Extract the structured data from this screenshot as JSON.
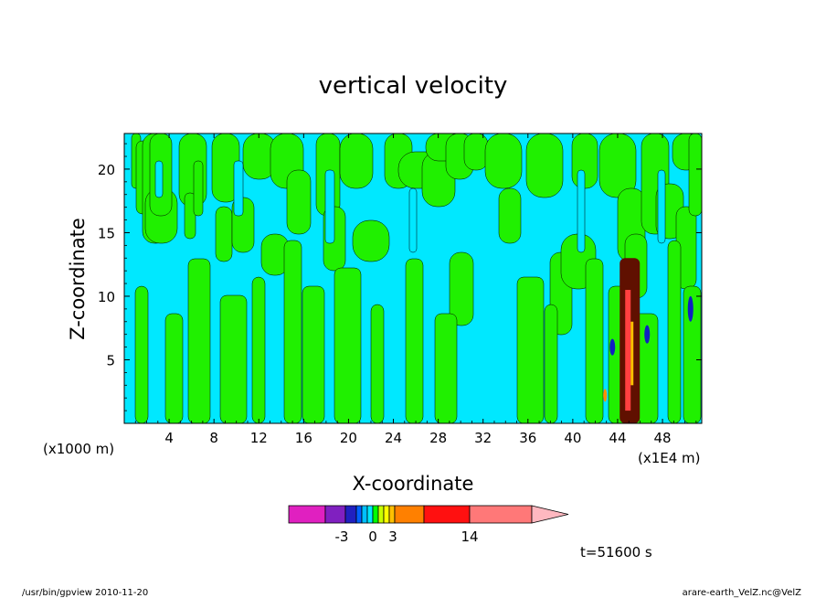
{
  "chart_data": {
    "type": "heatmap",
    "title": "vertical velocity",
    "xlabel": "X-coordinate",
    "ylabel": "Z-coordinate",
    "x_unit_left": "(x1000 m)",
    "x_unit_right": "(x1E4 m)",
    "xlim": [
      0,
      51.5
    ],
    "ylim": [
      0,
      22.8
    ],
    "x_ticks": [
      4,
      8,
      12,
      16,
      20,
      24,
      28,
      32,
      36,
      40,
      44,
      48
    ],
    "y_ticks": [
      5,
      10,
      15,
      20
    ],
    "time_label": "t=51600 s",
    "colorbar": {
      "tick_labels": [
        {
          "label": "-3",
          "value": -3
        },
        {
          "label": "0",
          "value": 0
        },
        {
          "label": "3",
          "value": 3
        },
        {
          "label": "14",
          "value": 14
        }
      ],
      "colors": [
        "#e020c0",
        "#8020c0",
        "#2020c0",
        "#0060ff",
        "#00c0ff",
        "#00e8ff",
        "#00ff00",
        "#c8ff00",
        "#ffff00",
        "#ffc000",
        "#ff8000",
        "#ff1010",
        "#ff7878",
        "#ffb8c0"
      ],
      "extend_max": true
    },
    "dominant_fields": [
      {
        "name": "negative weak",
        "color": "#00e8ff"
      },
      {
        "name": "positive weak",
        "color": "#20f000"
      },
      {
        "name": "strong convection band",
        "x": 45,
        "z_range": [
          0,
          13
        ],
        "color": "#601000"
      }
    ]
  },
  "footer": {
    "left": "/usr/bin/gpview   2010-11-20",
    "right": "arare-earth_VelZ.nc@VelZ"
  },
  "colors": {
    "cyan": "#00e8ff",
    "green": "#20f000",
    "dark": "#601000",
    "blue": "#1020c0"
  }
}
